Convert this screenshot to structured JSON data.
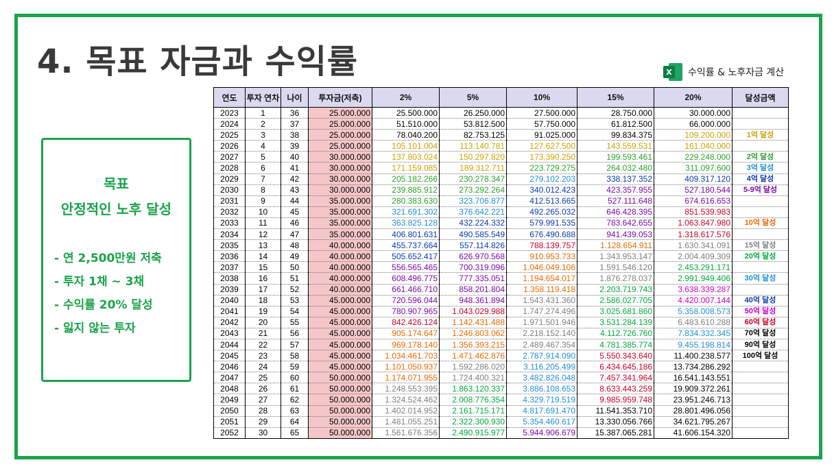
{
  "slide": {
    "title": "4. 목표 자금과 수익률",
    "excel_caption": "수익률 & 노후자금 계산",
    "excel_icon": "excel-icon",
    "accent_color": "#1aa34a"
  },
  "goal": {
    "heading1": "목표",
    "heading2": "안정적인 노후 달성",
    "items": [
      "- 연 2,500만원 저축",
      "- 투자 1채 ~ 3채",
      "- 수익률 20% 달성",
      "- 잃지 않는 투자"
    ]
  },
  "table": {
    "headers": [
      "연도",
      "투자 연차",
      "나이",
      "투자금(저축)",
      "2%",
      "5%",
      "10%",
      "15%",
      "20%",
      "달성금액"
    ],
    "rows": [
      {
        "year": "2023",
        "yr": "1",
        "age": "36",
        "inv": "25.000.000",
        "v": [
          "25.500.000",
          "26.250.000",
          "27.500.000",
          "28.750.000",
          "30.000.000"
        ],
        "m": ""
      },
      {
        "year": "2024",
        "yr": "2",
        "age": "37",
        "inv": "25.000.000",
        "v": [
          "51.510.000",
          "53.812.500",
          "57.750.000",
          "61.812.500",
          "66.000.000"
        ],
        "m": ""
      },
      {
        "year": "2025",
        "yr": "3",
        "age": "38",
        "inv": "25.000.000",
        "v": [
          "78.040.200",
          "82.753.125",
          "91.025.000",
          "99.834.375",
          "109.200.000"
        ],
        "m": "1억 달성"
      },
      {
        "year": "2026",
        "yr": "4",
        "age": "39",
        "inv": "25.000.000",
        "v": [
          "105.101.004",
          "113.140.781",
          "127.627.500",
          "143.559.531",
          "161.040.000"
        ],
        "m": ""
      },
      {
        "year": "2027",
        "yr": "5",
        "age": "40",
        "inv": "30.000.000",
        "v": [
          "137.803.024",
          "150.297.820",
          "173.390.250",
          "199.593.461",
          "229.248.000"
        ],
        "m": "2억 달성"
      },
      {
        "year": "2028",
        "yr": "6",
        "age": "41",
        "inv": "30.000.000",
        "v": [
          "171.159.085",
          "189.312.711",
          "223.729.275",
          "264.032.480",
          "311.097.600"
        ],
        "m": "3억 달성"
      },
      {
        "year": "2029",
        "yr": "7",
        "age": "42",
        "inv": "30.000.000",
        "v": [
          "205.182.266",
          "230.278.347",
          "279.102.203",
          "338.137.352",
          "409.317.120"
        ],
        "m": "4억 달성"
      },
      {
        "year": "2030",
        "yr": "8",
        "age": "43",
        "inv": "30.000.000",
        "v": [
          "239.885.912",
          "273.292.264",
          "340.012.423",
          "423.357.955",
          "527.180.544"
        ],
        "m": "5-9억 달성"
      },
      {
        "year": "2031",
        "yr": "9",
        "age": "44",
        "inv": "35.000.000",
        "v": [
          "280.383.630",
          "323.706.877",
          "412.513.665",
          "527.111.648",
          "674.616.653"
        ],
        "m": ""
      },
      {
        "year": "2032",
        "yr": "10",
        "age": "45",
        "inv": "35.000.000",
        "v": [
          "321.691.302",
          "376.642.221",
          "492.265.032",
          "646.428.395",
          "851.539.983"
        ],
        "m": ""
      },
      {
        "year": "2033",
        "yr": "11",
        "age": "46",
        "inv": "35.000.000",
        "v": [
          "363.825.128",
          "432.224.332",
          "579.991.535",
          "783.642.655",
          "1.063.847.980"
        ],
        "m": "10억 달성"
      },
      {
        "year": "2034",
        "yr": "12",
        "age": "47",
        "inv": "35.000.000",
        "v": [
          "406.801.631",
          "490.585.549",
          "676.490.688",
          "941.439.053",
          "1.318.617.576"
        ],
        "m": ""
      },
      {
        "year": "2035",
        "yr": "13",
        "age": "48",
        "inv": "40.000.000",
        "v": [
          "455.737.664",
          "557.114.826",
          "788.139.757",
          "1.128.654.911",
          "1.630.341.091"
        ],
        "m": "15억 달성"
      },
      {
        "year": "2036",
        "yr": "14",
        "age": "49",
        "inv": "40.000.000",
        "v": [
          "505.652.417",
          "626.970.568",
          "910.953.733",
          "1.343.953.147",
          "2.004.409.309"
        ],
        "m": "20억 달성"
      },
      {
        "year": "2037",
        "yr": "15",
        "age": "50",
        "inv": "40.000.000",
        "v": [
          "556.565.465",
          "700.319.096",
          "1.046.049.106",
          "1.591.546.120",
          "2.453.291.171"
        ],
        "m": ""
      },
      {
        "year": "2038",
        "yr": "16",
        "age": "51",
        "inv": "40.000.000",
        "v": [
          "608.496.775",
          "777.335.051",
          "1.194.654.017",
          "1.876.278.037",
          "2.991.949.406"
        ],
        "m": "30억 달성"
      },
      {
        "year": "2039",
        "yr": "17",
        "age": "52",
        "inv": "40.000.000",
        "v": [
          "661.466.710",
          "858.201.804",
          "1.358.119.418",
          "2.203.719.743",
          "3.638.339.287"
        ],
        "m": ""
      },
      {
        "year": "2040",
        "yr": "18",
        "age": "53",
        "inv": "45.000.000",
        "v": [
          "720.596.044",
          "948.361.894",
          "1.543.431.360",
          "2.586.027.705",
          "4.420.007.144"
        ],
        "m": "40억 달성"
      },
      {
        "year": "2041",
        "yr": "19",
        "age": "54",
        "inv": "45.000.000",
        "v": [
          "780.907.965",
          "1.043.029.988",
          "1.747.274.496",
          "3.025.681.860",
          "5.358.008.573"
        ],
        "m": "50억 달성"
      },
      {
        "year": "2042",
        "yr": "20",
        "age": "55",
        "inv": "45.000.000",
        "v": [
          "842.426.124",
          "1.142.431.488",
          "1.971.501.946",
          "3.531.284.139",
          "6.483.610.288"
        ],
        "m": "60억 달성"
      },
      {
        "year": "2043",
        "yr": "21",
        "age": "56",
        "inv": "45.000.000",
        "v": [
          "905.174.647",
          "1.246.803.062",
          "2.218.152.140",
          "4.112.726.760",
          "7.834.332.345"
        ],
        "m": "70억 달성"
      },
      {
        "year": "2044",
        "yr": "22",
        "age": "57",
        "inv": "45.000.000",
        "v": [
          "969.178.140",
          "1.356.393.215",
          "2.489.467.354",
          "4.781.385.774",
          "9.455.198.814"
        ],
        "m": "90억 달성"
      },
      {
        "year": "2045",
        "yr": "23",
        "age": "58",
        "inv": "45.000.000",
        "v": [
          "1.034.461.703",
          "1.471.462.876",
          "2.787.914.090",
          "5.550.343.640",
          "11.400.238.577"
        ],
        "m": "100억 달성"
      },
      {
        "year": "2046",
        "yr": "24",
        "age": "59",
        "inv": "45.000.000",
        "v": [
          "1.101.050.937",
          "1.592.286.020",
          "3.116.205.499",
          "6.434.645.186",
          "13.734.286.292"
        ],
        "m": ""
      },
      {
        "year": "2047",
        "yr": "25",
        "age": "60",
        "inv": "50.000.000",
        "v": [
          "1.174.071.955",
          "1.724.400.321",
          "3.482.826.048",
          "7.457.341.964",
          "16.541.143.551"
        ],
        "m": ""
      },
      {
        "year": "2048",
        "yr": "26",
        "age": "61",
        "inv": "50.000.000",
        "v": [
          "1.248.553.395",
          "1.863.120.337",
          "3.886.108.653",
          "8.633.443.259",
          "19.909.372.261"
        ],
        "m": ""
      },
      {
        "year": "2049",
        "yr": "27",
        "age": "62",
        "inv": "50.000.000",
        "v": [
          "1.324.524.462",
          "2.008.776.354",
          "4.329.719.519",
          "9.985.959.748",
          "23.951.246.713"
        ],
        "m": ""
      },
      {
        "year": "2050",
        "yr": "28",
        "age": "63",
        "inv": "50.000.000",
        "v": [
          "1.402.014.952",
          "2.161.715.171",
          "4.817.691.470",
          "11.541.353.710",
          "28.801.496.056"
        ],
        "m": ""
      },
      {
        "year": "2051",
        "yr": "29",
        "age": "64",
        "inv": "50.000.000",
        "v": [
          "1.481.055.251",
          "2.322.300.930",
          "5.354.460.617",
          "13.330.056.766",
          "34.621.795.267"
        ],
        "m": ""
      },
      {
        "year": "2052",
        "yr": "30",
        "age": "65",
        "inv": "50.000.000",
        "v": [
          "1.561.676.356",
          "2.490.915.977",
          "5.944.906.679",
          "15.387.065.281",
          "41.606.154.320"
        ],
        "m": ""
      }
    ],
    "colors": {
      "0": "#000000",
      "1": "#c9a100",
      "2": "#2ca02c",
      "3": "#1f8fd6",
      "4": "#0b3bb0",
      "5": "#7a0aa8",
      "6": "#c8002a",
      "7": "#e86a00",
      "8": "#7f7f7f",
      "9": "#00aa3c",
      "10": "#c800c8"
    },
    "milestone_colors": [
      "",
      "",
      "#c9a100",
      "",
      "#2ca02c",
      "#1f8fd6",
      "#0b3bb0",
      "#7a0aa8",
      "",
      "",
      "#e86a00",
      "",
      "#7f7f7f",
      "#00aa3c",
      "",
      "#1f8fd6",
      "",
      "#0b3bb0",
      "#c800c8",
      "#c8002a",
      "#000000",
      "#000000",
      "#000000",
      "",
      "",
      "",
      "",
      "",
      "",
      ""
    ]
  }
}
